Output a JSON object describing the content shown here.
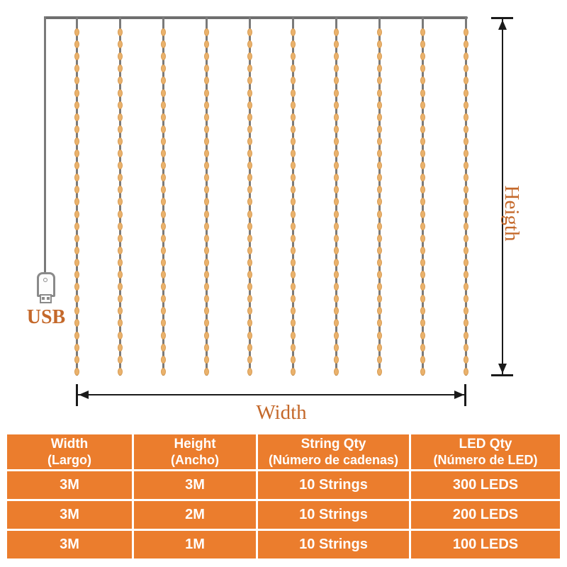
{
  "diagram": {
    "usb_label": "USB",
    "width_label": "Width",
    "height_label": "Heigth",
    "string_count": 10,
    "beads_per_string": 29,
    "colors": {
      "table_orange": "#eb7d2d",
      "label_orange": "#c4682a",
      "wire_gray": "#7a7a7a",
      "bead_fill": "#eab26c",
      "dimension_black": "#1a1a1a"
    }
  },
  "table": {
    "columns": [
      {
        "label": "Width",
        "sublabel": "(Largo)"
      },
      {
        "label": "Height",
        "sublabel": "(Ancho)"
      },
      {
        "label": "String Qty",
        "sublabel": "(Número de cadenas)"
      },
      {
        "label": "LED Qty",
        "sublabel": "(Número de LED)"
      }
    ],
    "rows": [
      {
        "cells": [
          "3M",
          "3M",
          "10 Strings",
          "300 LEDS"
        ]
      },
      {
        "cells": [
          "3M",
          "2M",
          "10 Strings",
          "200 LEDS"
        ]
      },
      {
        "cells": [
          "3M",
          "1M",
          "10 Strings",
          "100 LEDS"
        ]
      }
    ]
  }
}
